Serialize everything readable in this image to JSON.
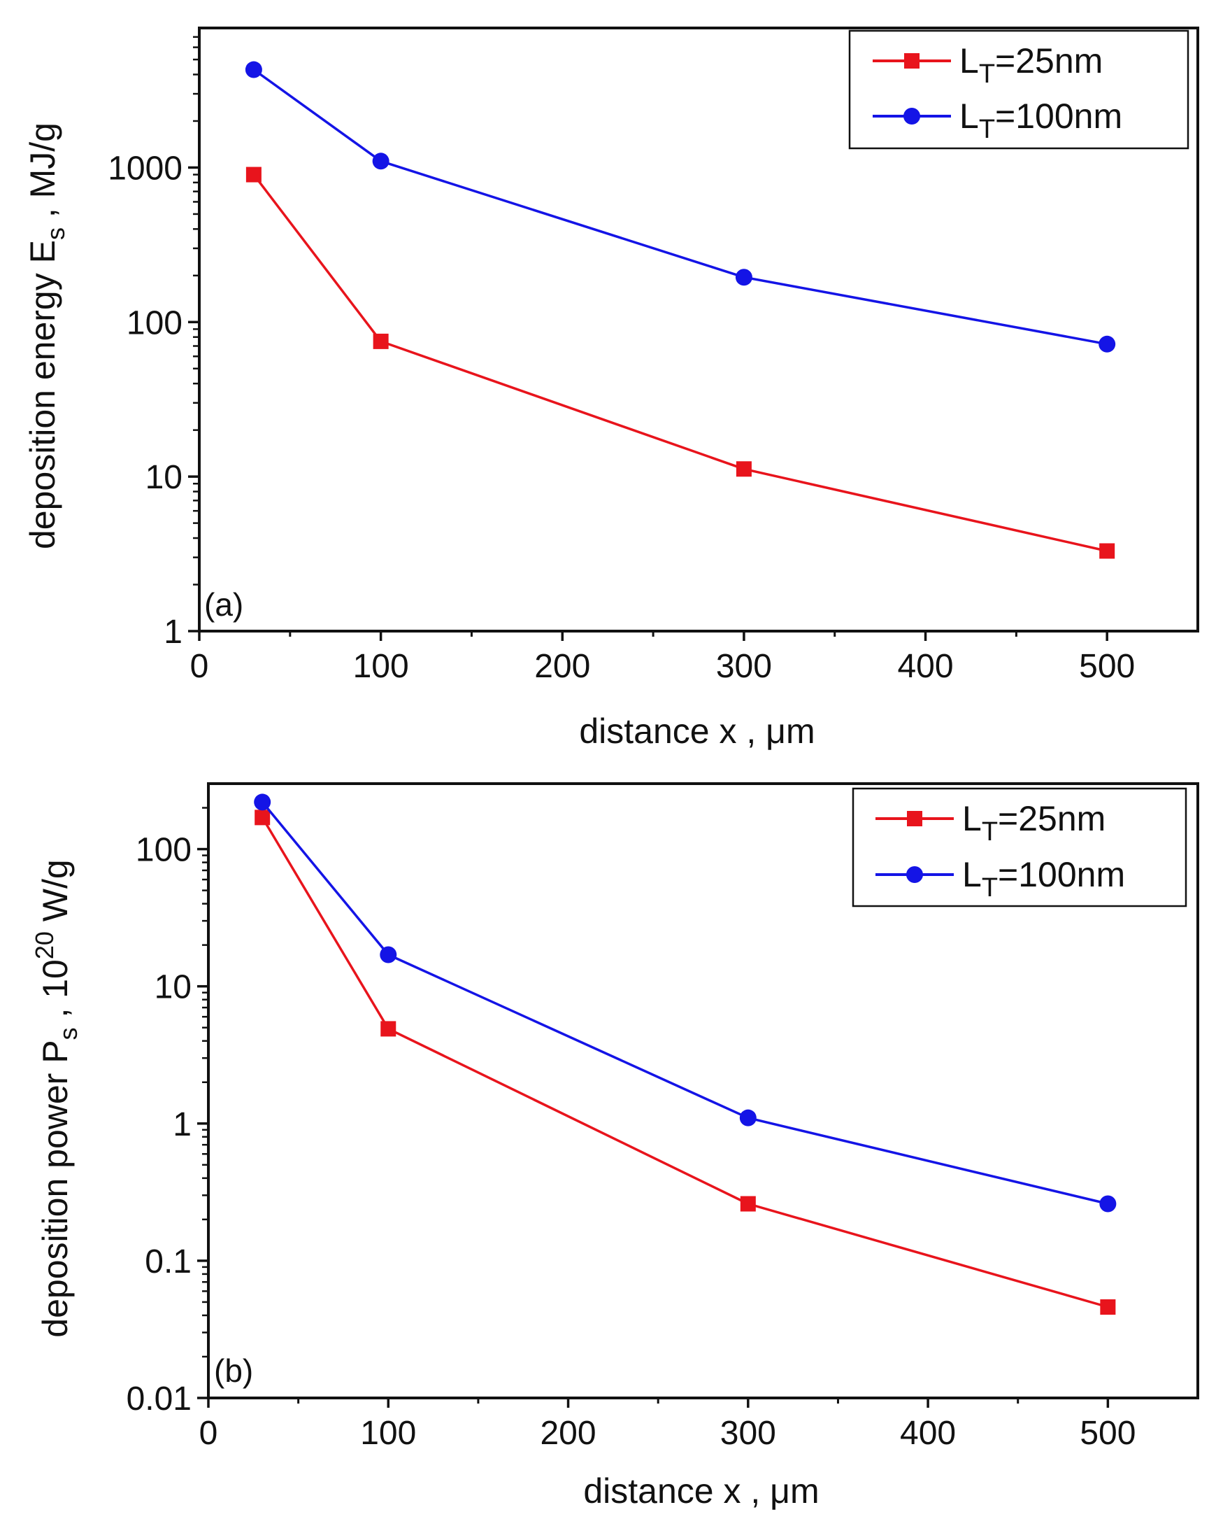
{
  "chart_data": [
    {
      "type": "line",
      "panel_label": "(a)",
      "yscale": "log",
      "xlabel": "distance x , μm",
      "ylabel_main": "deposition energy E",
      "ylabel_sub": "s",
      "ylabel_unit": " , MJ/g",
      "xlim": [
        0,
        550
      ],
      "ylim": [
        1,
        8000
      ],
      "xticks": [
        0,
        100,
        200,
        300,
        400,
        500
      ],
      "xtick_labels": [
        "0",
        "100",
        "200",
        "300",
        "400",
        "500"
      ],
      "yticks": [
        1,
        10,
        100,
        1000
      ],
      "ytick_labels": [
        "1",
        "10",
        "100",
        "1000"
      ],
      "legend_position": "top-right",
      "series": [
        {
          "name": "L_T=25nm",
          "label_main": "L",
          "label_sub": "T",
          "label_rest": "=25nm",
          "color": "#e8141c",
          "marker": "square",
          "x": [
            30,
            100,
            300,
            500
          ],
          "y": [
            900,
            75,
            11.2,
            3.3
          ]
        },
        {
          "name": "L_T=100nm",
          "label_main": "L",
          "label_sub": "T",
          "label_rest": "=100nm",
          "color": "#1414e6",
          "marker": "circle",
          "x": [
            30,
            100,
            300,
            500
          ],
          "y": [
            4300,
            1100,
            195,
            72
          ]
        }
      ]
    },
    {
      "type": "line",
      "panel_label": "(b)",
      "yscale": "log",
      "xlabel": "distance x , μm",
      "ylabel_main": "deposition power P",
      "ylabel_sub": "s",
      "ylabel_unit": " , 10",
      "ylabel_sup": "20",
      "ylabel_unit2": " W/g",
      "xlim": [
        0,
        550
      ],
      "ylim": [
        0.01,
        300
      ],
      "xticks": [
        0,
        100,
        200,
        300,
        400,
        500
      ],
      "xtick_labels": [
        "0",
        "100",
        "200",
        "300",
        "400",
        "500"
      ],
      "yticks": [
        0.01,
        0.1,
        1,
        10,
        100
      ],
      "ytick_labels": [
        "0.01",
        "0.1",
        "1",
        "10",
        "100"
      ],
      "legend_position": "top-right",
      "series": [
        {
          "name": "L_T=25nm",
          "label_main": "L",
          "label_sub": "T",
          "label_rest": "=25nm",
          "color": "#e8141c",
          "marker": "square",
          "x": [
            30,
            100,
            300,
            500
          ],
          "y": [
            170,
            4.9,
            0.26,
            0.046
          ]
        },
        {
          "name": "L_T=100nm",
          "label_main": "L",
          "label_sub": "T",
          "label_rest": "=100nm",
          "color": "#1414e6",
          "marker": "circle",
          "x": [
            30,
            100,
            300,
            500
          ],
          "y": [
            220,
            17,
            1.1,
            0.26
          ]
        }
      ]
    }
  ]
}
